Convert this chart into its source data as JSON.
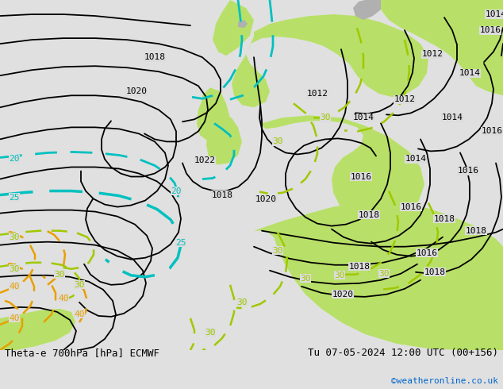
{
  "title_left": "Theta-e 700hPa [hPa] ECMWF",
  "title_right": "Tu 07-05-2024 12:00 UTC (00+156)",
  "credit": "©weatheronline.co.uk",
  "credit_color": "#0066cc",
  "background_color": "#e0e0e0",
  "fig_width": 6.34,
  "fig_height": 4.9,
  "dpi": 100,
  "title_fontsize": 9,
  "credit_fontsize": 8,
  "green_fill_color": "#b8e068",
  "cyan_line_color": "#00c0c0",
  "yellow_green_line_color": "#a0c800",
  "orange_line_color": "#e8a000",
  "black_line_color": "#000000",
  "gray_land_color": "#b0b0b0",
  "map_bg": "#dcdcdc"
}
